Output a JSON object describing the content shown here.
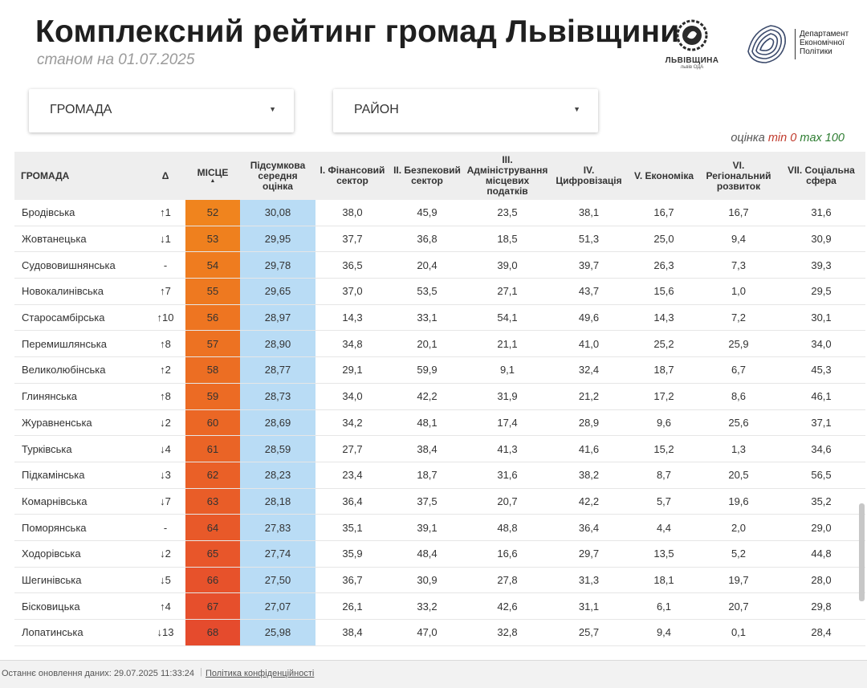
{
  "header": {
    "title": "Комплексний рейтинг громад Львівщини",
    "subtitle": "станом на 01.07.2025"
  },
  "logos": {
    "lvivshchyna_name": "ЛЬВІВЩИНА",
    "lvivshchyna_sub": "львів ОДА",
    "department_lines": [
      "Департамент",
      "Економічної",
      "Політики"
    ]
  },
  "filters": {
    "hromada_label": "ГРОМАДА",
    "raion_label": "РАЙОН"
  },
  "range_note": {
    "prefix": "оцінка",
    "min_label": "min",
    "min_value": "0",
    "max_label": "max",
    "max_value": "100"
  },
  "table": {
    "columns": [
      {
        "key": "name",
        "label": "ГРОМАДА"
      },
      {
        "key": "delta",
        "label": "Δ"
      },
      {
        "key": "rank",
        "label": "МІСЦЕ"
      },
      {
        "key": "avg",
        "label": "Підсумкова середня оцінка"
      },
      {
        "key": "c1",
        "label": "І. Фінансовий сектор"
      },
      {
        "key": "c2",
        "label": "ІІ. Безпековий сектор"
      },
      {
        "key": "c3",
        "label": "ІІІ. Адміністрування місцевих податків"
      },
      {
        "key": "c4",
        "label": "IV. Цифровізація"
      },
      {
        "key": "c5",
        "label": "V. Економіка"
      },
      {
        "key": "c6",
        "label": "VI. Регіональний розвиток"
      },
      {
        "key": "c7",
        "label": "VII. Соціальна сфера"
      }
    ],
    "rows": [
      {
        "name": "Бродівська",
        "delta": "↑1",
        "dir": "up",
        "rank": "52",
        "rank_color": "#f0841e",
        "avg": "30,08",
        "c1": "38,0",
        "c2": "45,9",
        "c3": "23,5",
        "c4": "38,1",
        "c5": "16,7",
        "c6": "16,7",
        "c7": "31,6"
      },
      {
        "name": "Жовтанецька",
        "delta": "↓1",
        "dir": "down",
        "rank": "53",
        "rank_color": "#ef801e",
        "avg": "29,95",
        "c1": "37,7",
        "c2": "36,8",
        "c3": "18,5",
        "c4": "51,3",
        "c5": "25,0",
        "c6": "9,4",
        "c7": "30,9"
      },
      {
        "name": "Судововишнянська",
        "delta": "-",
        "dir": "none",
        "rank": "54",
        "rank_color": "#ef7c1f",
        "avg": "29,78",
        "c1": "36,5",
        "c2": "20,4",
        "c3": "39,0",
        "c4": "39,7",
        "c5": "26,3",
        "c6": "7,3",
        "c7": "39,3"
      },
      {
        "name": "Новокалинівська",
        "delta": "↑7",
        "dir": "up",
        "rank": "55",
        "rank_color": "#ee7920",
        "avg": "29,65",
        "c1": "37,0",
        "c2": "53,5",
        "c3": "27,1",
        "c4": "43,7",
        "c5": "15,6",
        "c6": "1,0",
        "c7": "29,5"
      },
      {
        "name": "Старосамбірська",
        "delta": "↑10",
        "dir": "up",
        "rank": "56",
        "rank_color": "#ee7521",
        "avg": "28,97",
        "c1": "14,3",
        "c2": "33,1",
        "c3": "54,1",
        "c4": "49,6",
        "c5": "14,3",
        "c6": "7,2",
        "c7": "30,1"
      },
      {
        "name": "Перемишлянська",
        "delta": "↑8",
        "dir": "up",
        "rank": "57",
        "rank_color": "#ed7222",
        "avg": "28,90",
        "c1": "34,8",
        "c2": "20,1",
        "c3": "21,1",
        "c4": "41,0",
        "c5": "25,2",
        "c6": "25,9",
        "c7": "34,0"
      },
      {
        "name": "Великолюбінська",
        "delta": "↑2",
        "dir": "up",
        "rank": "58",
        "rank_color": "#ec6e23",
        "avg": "28,77",
        "c1": "29,1",
        "c2": "59,9",
        "c3": "9,1",
        "c4": "32,4",
        "c5": "18,7",
        "c6": "6,7",
        "c7": "45,3"
      },
      {
        "name": "Глинянська",
        "delta": "↑8",
        "dir": "up",
        "rank": "59",
        "rank_color": "#ec6b24",
        "avg": "28,73",
        "c1": "34,0",
        "c2": "42,2",
        "c3": "31,9",
        "c4": "21,2",
        "c5": "17,2",
        "c6": "8,6",
        "c7": "46,1"
      },
      {
        "name": "Журавненська",
        "delta": "↓2",
        "dir": "down",
        "rank": "60",
        "rank_color": "#eb6725",
        "avg": "28,69",
        "c1": "34,2",
        "c2": "48,1",
        "c3": "17,4",
        "c4": "28,9",
        "c5": "9,6",
        "c6": "25,6",
        "c7": "37,1"
      },
      {
        "name": "Турківська",
        "delta": "↓4",
        "dir": "down",
        "rank": "61",
        "rank_color": "#ea6426",
        "avg": "28,59",
        "c1": "27,7",
        "c2": "38,4",
        "c3": "41,3",
        "c4": "41,6",
        "c5": "15,2",
        "c6": "1,3",
        "c7": "34,6"
      },
      {
        "name": "Підкамінська",
        "delta": "↓3",
        "dir": "down",
        "rank": "62",
        "rank_color": "#ea6027",
        "avg": "28,23",
        "c1": "23,4",
        "c2": "18,7",
        "c3": "31,6",
        "c4": "38,2",
        "c5": "8,7",
        "c6": "20,5",
        "c7": "56,5"
      },
      {
        "name": "Комарнівська",
        "delta": "↓7",
        "dir": "down",
        "rank": "63",
        "rank_color": "#e95d28",
        "avg": "28,18",
        "c1": "36,4",
        "c2": "37,5",
        "c3": "20,7",
        "c4": "42,2",
        "c5": "5,7",
        "c6": "19,6",
        "c7": "35,2"
      },
      {
        "name": "Поморянська",
        "delta": "-",
        "dir": "none",
        "rank": "64",
        "rank_color": "#e85929",
        "avg": "27,83",
        "c1": "35,1",
        "c2": "39,1",
        "c3": "48,8",
        "c4": "36,4",
        "c5": "4,4",
        "c6": "2,0",
        "c7": "29,0"
      },
      {
        "name": "Ходорівська",
        "delta": "↓2",
        "dir": "down",
        "rank": "65",
        "rank_color": "#e8562a",
        "avg": "27,74",
        "c1": "35,9",
        "c2": "48,4",
        "c3": "16,6",
        "c4": "29,7",
        "c5": "13,5",
        "c6": "5,2",
        "c7": "44,8"
      },
      {
        "name": "Шегинівська",
        "delta": "↓5",
        "dir": "down",
        "rank": "66",
        "rank_color": "#e7522b",
        "avg": "27,50",
        "c1": "36,7",
        "c2": "30,9",
        "c3": "27,8",
        "c4": "31,3",
        "c5": "18,1",
        "c6": "19,7",
        "c7": "28,0"
      },
      {
        "name": "Бісковицька",
        "delta": "↑4",
        "dir": "up",
        "rank": "67",
        "rank_color": "#e64f2c",
        "avg": "27,07",
        "c1": "26,1",
        "c2": "33,2",
        "c3": "42,6",
        "c4": "31,1",
        "c5": "6,1",
        "c6": "20,7",
        "c7": "29,8"
      },
      {
        "name": "Лопатинська",
        "delta": "↓13",
        "dir": "down",
        "rank": "68",
        "rank_color": "#e54b2d",
        "avg": "25,98",
        "c1": "38,4",
        "c2": "47,0",
        "c3": "32,8",
        "c4": "25,7",
        "c5": "9,4",
        "c6": "0,1",
        "c7": "28,4"
      }
    ]
  },
  "footer": {
    "updated": "Останнє оновлення даних: 29.07.2025 11:33:24",
    "privacy": "Політика конфіденційності"
  }
}
